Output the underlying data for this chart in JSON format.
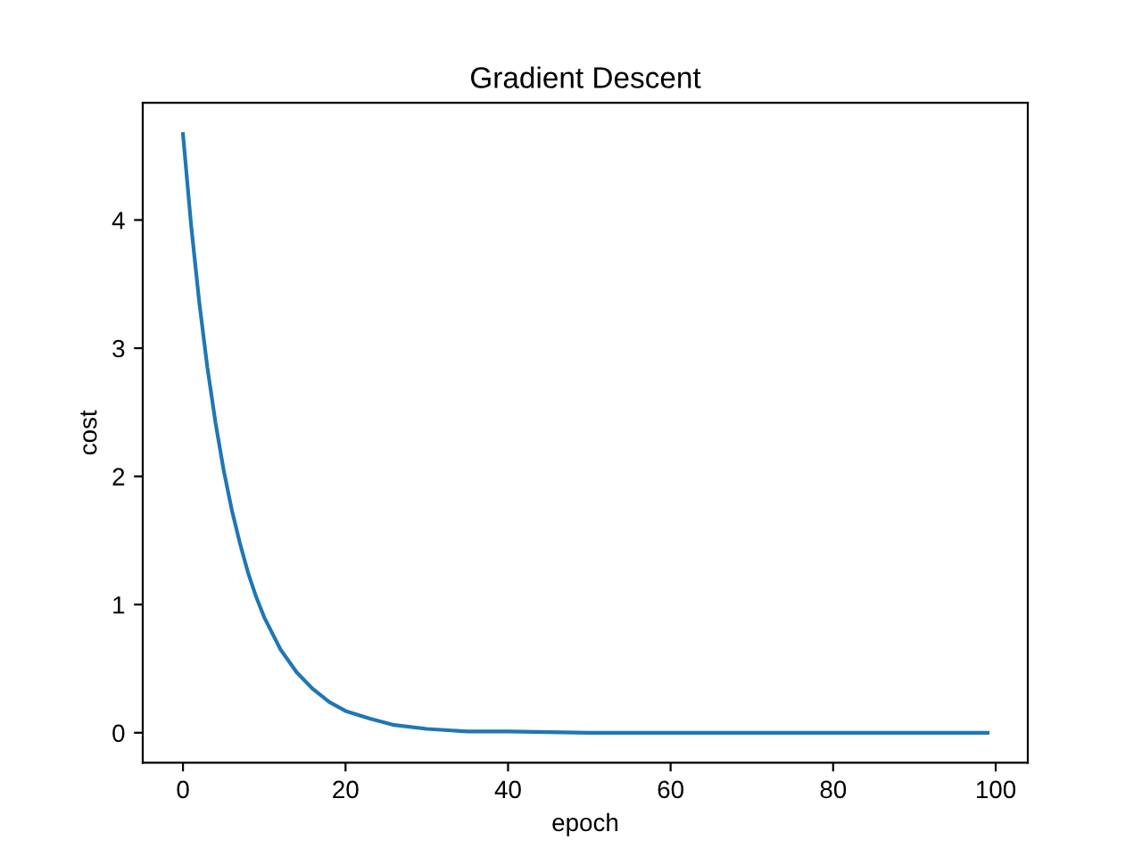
{
  "chart_data": {
    "type": "line",
    "title": "Gradient Descent",
    "xlabel": "epoch",
    "ylabel": "cost",
    "x": [
      0,
      1,
      2,
      3,
      4,
      5,
      6,
      7,
      8,
      9,
      10,
      12,
      14,
      16,
      18,
      20,
      23,
      26,
      30,
      35,
      40,
      50,
      60,
      70,
      80,
      90,
      99
    ],
    "series": [
      {
        "color": "#1f77b4",
        "values": [
          4.67,
          3.96,
          3.36,
          2.85,
          2.42,
          2.05,
          1.74,
          1.48,
          1.25,
          1.06,
          0.9,
          0.65,
          0.47,
          0.34,
          0.24,
          0.17,
          0.11,
          0.06,
          0.03,
          0.01,
          0.01,
          0,
          0,
          0,
          0,
          0,
          0
        ]
      }
    ],
    "xlim": [
      -4.95,
      103.95
    ],
    "ylim": [
      -0.234,
      4.914
    ],
    "xticks": [
      0,
      20,
      40,
      60,
      80,
      100
    ],
    "yticks": [
      0,
      1,
      2,
      3,
      4
    ],
    "grid": false,
    "legend": false,
    "marker": "none",
    "line_style": "solid"
  }
}
